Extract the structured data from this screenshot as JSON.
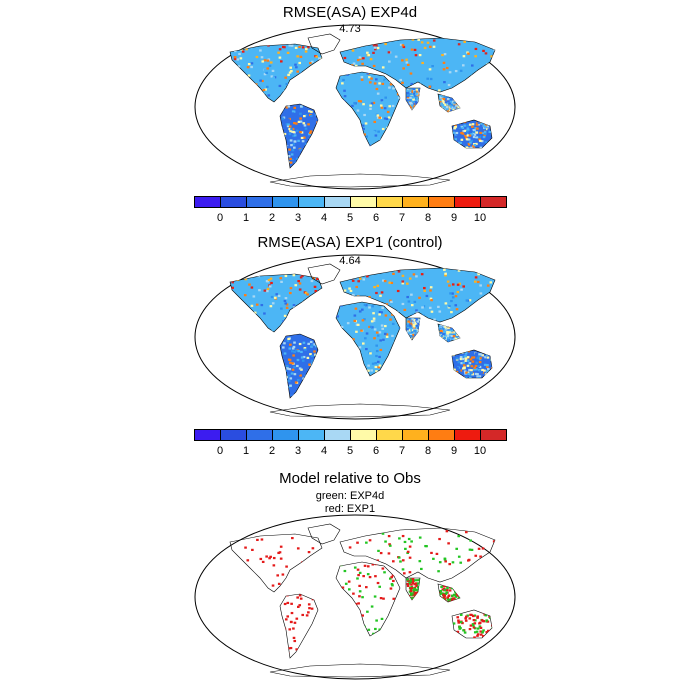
{
  "panels": [
    {
      "title": "RMSE(ASA) EXP4d",
      "subtitle": "4.73"
    },
    {
      "title": "RMSE(ASA) EXP1 (control)",
      "subtitle": "4.64"
    },
    {
      "title": "Model relative to Obs",
      "legend_lines": [
        "green: EXP4d",
        "red: EXP1"
      ]
    }
  ],
  "colorbar": {
    "labels": [
      "0",
      "1",
      "2",
      "3",
      "4",
      "5",
      "6",
      "7",
      "8",
      "9",
      "10"
    ],
    "colors": [
      "#3c1cf0",
      "#2a4de0",
      "#2f6fe8",
      "#2f94ee",
      "#4cb6f5",
      "#a9d8f4",
      "#fffaa8",
      "#ffd84a",
      "#ffb11e",
      "#ff7d12",
      "#ee1b0f",
      "#d42828"
    ]
  },
  "legend_colors": {
    "exp4d": "#22c522",
    "exp1": "#e41a1a"
  }
}
